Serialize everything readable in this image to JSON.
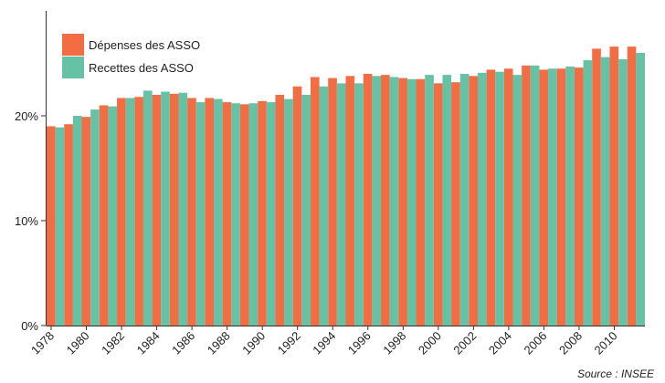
{
  "chart_data": {
    "type": "bar",
    "categories": [
      "1978",
      null,
      "1980",
      null,
      "1982",
      null,
      "1984",
      null,
      "1986",
      null,
      "1988",
      null,
      "1990",
      null,
      "1992",
      null,
      "1994",
      null,
      "1996",
      null,
      "1998",
      null,
      "2000",
      null,
      "2002",
      null,
      "2004",
      null,
      "2006",
      null,
      "2008",
      null,
      "2010",
      null
    ],
    "series": [
      {
        "name": "Dépenses des ASSO",
        "color": "#f26d43",
        "values": [
          19.0,
          19.2,
          19.9,
          21.0,
          21.7,
          21.8,
          22.0,
          22.1,
          21.7,
          21.7,
          21.3,
          21.1,
          21.4,
          22.0,
          22.8,
          23.7,
          23.6,
          23.8,
          24.0,
          23.9,
          23.6,
          23.5,
          23.1,
          23.2,
          23.8,
          24.4,
          24.5,
          24.8,
          24.4,
          24.5,
          24.6,
          26.4,
          26.6,
          26.6
        ]
      },
      {
        "name": "Recettes des ASSO",
        "color": "#66c2a5",
        "values": [
          18.9,
          20.0,
          20.6,
          20.9,
          21.7,
          22.4,
          22.3,
          22.2,
          21.3,
          21.6,
          21.2,
          21.2,
          21.3,
          21.6,
          22.0,
          22.8,
          23.1,
          23.1,
          23.8,
          23.7,
          23.5,
          23.9,
          23.9,
          24.0,
          24.1,
          24.2,
          23.9,
          24.8,
          24.5,
          24.7,
          25.3,
          25.6,
          25.4,
          26.0
        ]
      }
    ],
    "ylim": [
      0,
      30
    ],
    "yticks": [
      {
        "value": 0,
        "label": "0%"
      },
      {
        "value": 10,
        "label": "10%"
      },
      {
        "value": 20,
        "label": "20%"
      }
    ],
    "source": "Source : INSEE"
  }
}
